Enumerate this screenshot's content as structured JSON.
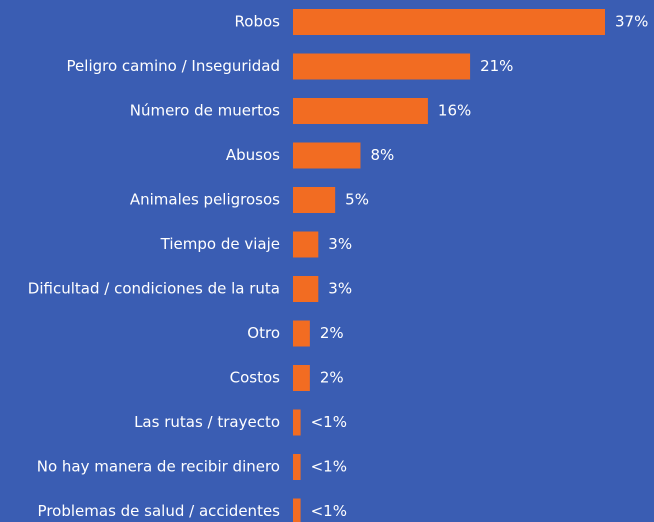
{
  "chart_data": {
    "type": "bar",
    "orientation": "horizontal",
    "categories": [
      "Robos",
      "Peligro camino / Inseguridad",
      "Número de muertos",
      "Abusos",
      "Animales peligrosos",
      "Tiempo de viaje",
      "Dificultad / condiciones de la ruta",
      "Otro",
      "Costos",
      "Las rutas / trayecto",
      "No hay manera de recibir dinero",
      "Problemas de salud / accidentes"
    ],
    "values": [
      37,
      21,
      16,
      8,
      5,
      3,
      3,
      2,
      2,
      0.9,
      0.9,
      0.9
    ],
    "value_labels": [
      "37%",
      "21%",
      "16%",
      "8%",
      "5%",
      "3%",
      "3%",
      "2%",
      "2%",
      "<1%",
      "<1%",
      "<1%"
    ],
    "color": "#f26c22",
    "background": "#3a5db3"
  }
}
